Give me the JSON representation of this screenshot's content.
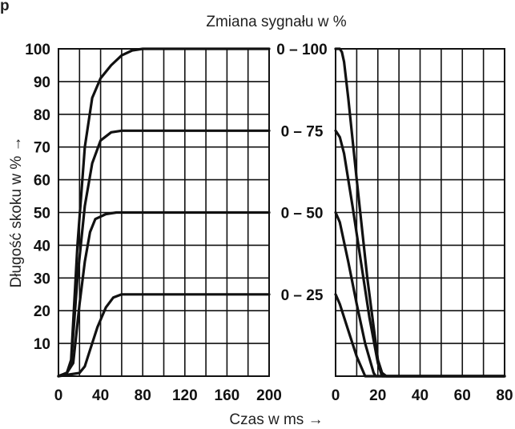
{
  "header": {
    "corner_letter": "p"
  },
  "chart_data": [
    {
      "type": "line",
      "title": "",
      "xlabel": "Czas w ms →",
      "ylabel": "Długość skoku w % →",
      "xlim": [
        0,
        200
      ],
      "ylim": [
        0,
        100
      ],
      "x_ticks": [
        0,
        40,
        80,
        120,
        160,
        200
      ],
      "y_ticks": [
        10,
        20,
        30,
        40,
        50,
        60,
        70,
        80,
        90,
        100
      ],
      "grid": true,
      "series": [
        {
          "name": "0 – 100",
          "points": [
            [
              0,
              0
            ],
            [
              8,
              1
            ],
            [
              12,
              5
            ],
            [
              18,
              40
            ],
            [
              25,
              70
            ],
            [
              32,
              85
            ],
            [
              40,
              91
            ],
            [
              50,
              95
            ],
            [
              60,
              98
            ],
            [
              70,
              99.5
            ],
            [
              80,
              100
            ],
            [
              200,
              100
            ]
          ]
        },
        {
          "name": "0 – 75",
          "points": [
            [
              0,
              0
            ],
            [
              8,
              1
            ],
            [
              12,
              4
            ],
            [
              18,
              30
            ],
            [
              25,
              52
            ],
            [
              32,
              65
            ],
            [
              40,
              72
            ],
            [
              50,
              74.5
            ],
            [
              60,
              75
            ],
            [
              200,
              75
            ]
          ]
        },
        {
          "name": "0 – 50",
          "points": [
            [
              0,
              0
            ],
            [
              8,
              1
            ],
            [
              14,
              4
            ],
            [
              20,
              22
            ],
            [
              25,
              35
            ],
            [
              30,
              44
            ],
            [
              35,
              48
            ],
            [
              45,
              49.5
            ],
            [
              55,
              50
            ],
            [
              200,
              50
            ]
          ]
        },
        {
          "name": "0 – 25",
          "points": [
            [
              0,
              0
            ],
            [
              10,
              0.5
            ],
            [
              20,
              1
            ],
            [
              25,
              3
            ],
            [
              30,
              8
            ],
            [
              37,
              15
            ],
            [
              45,
              21
            ],
            [
              52,
              24
            ],
            [
              60,
              25
            ],
            [
              200,
              25
            ]
          ]
        }
      ]
    },
    {
      "type": "line",
      "title": "Zmiana sygnału w %",
      "xlabel": "",
      "xlim": [
        0,
        80
      ],
      "ylim": [
        0,
        100
      ],
      "x_ticks": [
        0,
        20,
        40,
        60,
        80
      ],
      "grid": true,
      "series": [
        {
          "name": "0 – 100",
          "points": [
            [
              0,
              100
            ],
            [
              2,
              100
            ],
            [
              3,
              99
            ],
            [
              4,
              96
            ],
            [
              6,
              85
            ],
            [
              10,
              60
            ],
            [
              15,
              30
            ],
            [
              20,
              5
            ],
            [
              22,
              1
            ],
            [
              24,
              0
            ],
            [
              80,
              0
            ]
          ]
        },
        {
          "name": "0 – 75",
          "points": [
            [
              0,
              75
            ],
            [
              2,
              73
            ],
            [
              4,
              68
            ],
            [
              8,
              52
            ],
            [
              12,
              35
            ],
            [
              16,
              18
            ],
            [
              20,
              4
            ],
            [
              22,
              0
            ],
            [
              80,
              0
            ]
          ]
        },
        {
          "name": "0 – 50",
          "points": [
            [
              0,
              50
            ],
            [
              2,
              47
            ],
            [
              6,
              35
            ],
            [
              10,
              22
            ],
            [
              14,
              10
            ],
            [
              18,
              1
            ],
            [
              19,
              0
            ],
            [
              80,
              0
            ]
          ]
        },
        {
          "name": "0 – 25",
          "points": [
            [
              0,
              25
            ],
            [
              2,
              22
            ],
            [
              6,
              14
            ],
            [
              10,
              6
            ],
            [
              14,
              0
            ],
            [
              80,
              0
            ]
          ]
        }
      ]
    }
  ]
}
